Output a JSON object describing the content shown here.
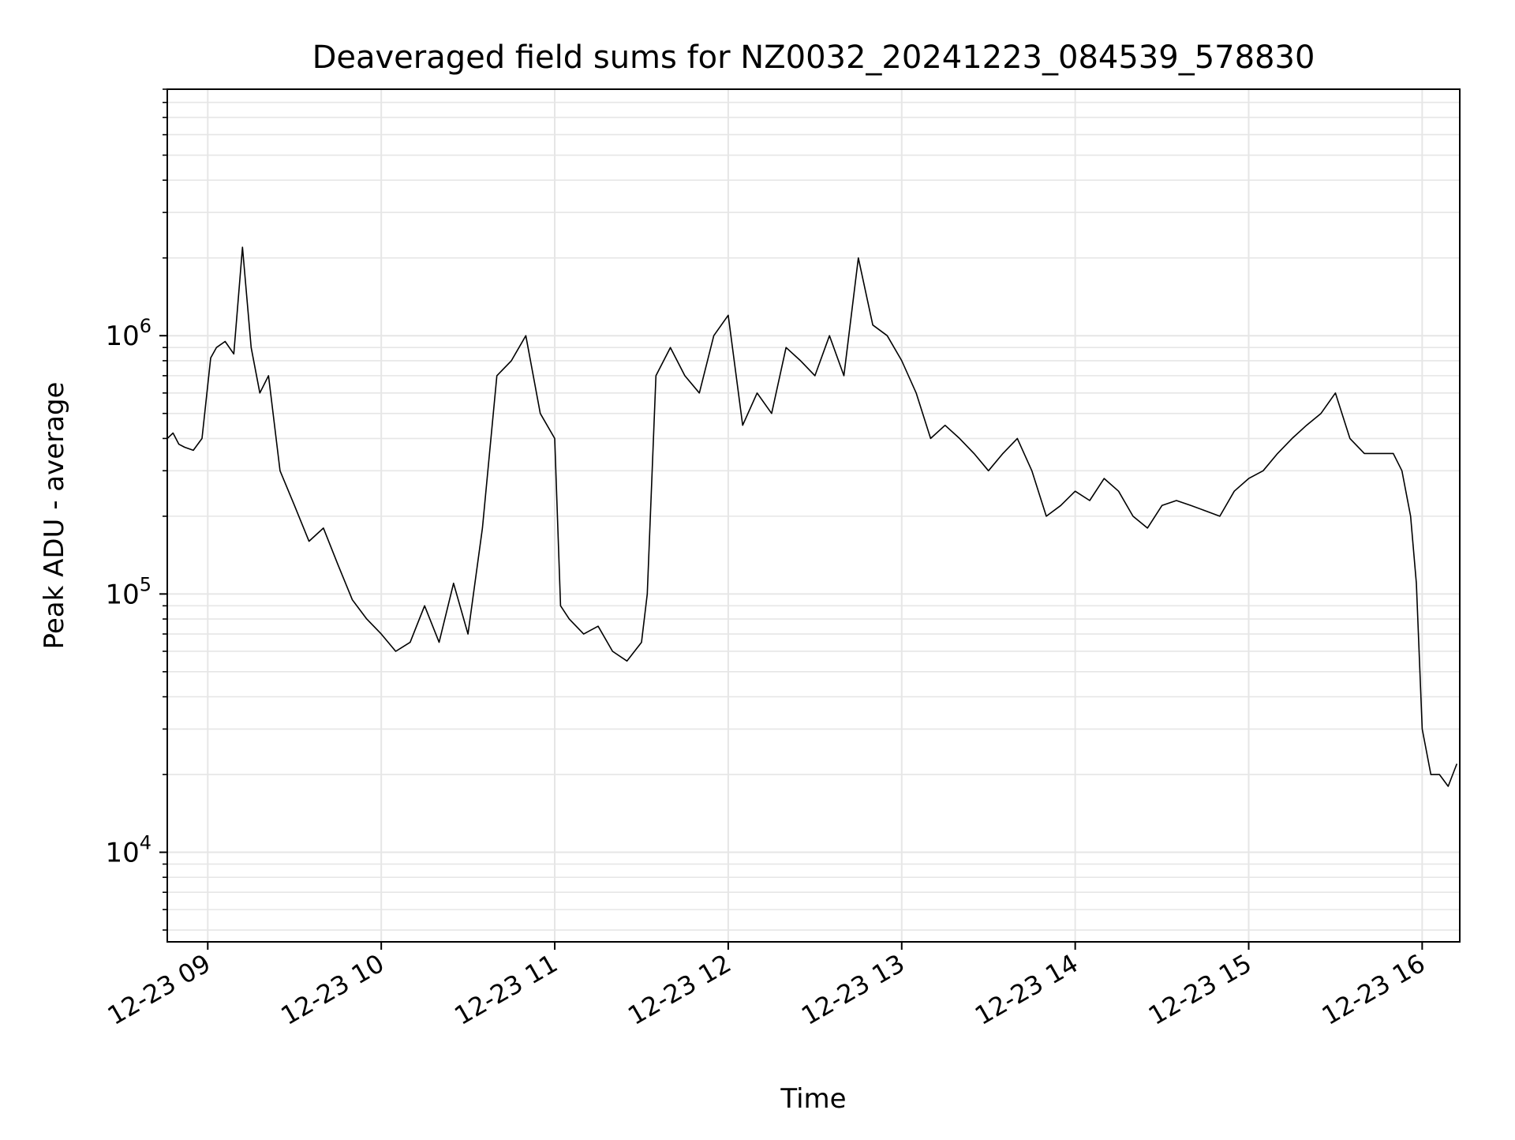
{
  "chart_data": {
    "type": "line",
    "title": "Deaveraged field sums for NZ0032_20241223_084539_578830",
    "xlabel": "Time",
    "ylabel": "Peak ADU - average",
    "y_scale": "log",
    "xlim": [
      "2024-12-23T08:46",
      "2024-12-23T16:13"
    ],
    "ylim": [
      4500,
      9000000
    ],
    "x_ticks": [
      {
        "value": "2024-12-23T09:00",
        "label": "12-23 09"
      },
      {
        "value": "2024-12-23T10:00",
        "label": "12-23 10"
      },
      {
        "value": "2024-12-23T11:00",
        "label": "12-23 11"
      },
      {
        "value": "2024-12-23T12:00",
        "label": "12-23 12"
      },
      {
        "value": "2024-12-23T13:00",
        "label": "12-23 13"
      },
      {
        "value": "2024-12-23T14:00",
        "label": "12-23 14"
      },
      {
        "value": "2024-12-23T15:00",
        "label": "12-23 15"
      },
      {
        "value": "2024-12-23T16:00",
        "label": "12-23 16"
      }
    ],
    "y_ticks": [
      {
        "value": 10000,
        "base": "10",
        "exp": "4"
      },
      {
        "value": 100000,
        "base": "10",
        "exp": "5"
      },
      {
        "value": 1000000,
        "base": "10",
        "exp": "6"
      }
    ],
    "grid": true,
    "line_color": "#000000",
    "grid_color": "#e6e6e6",
    "series": [
      {
        "x": [
          "2024-12-23T08:46",
          "2024-12-23T08:48",
          "2024-12-23T08:50",
          "2024-12-23T08:52",
          "2024-12-23T08:55",
          "2024-12-23T08:58",
          "2024-12-23T09:01",
          "2024-12-23T09:03",
          "2024-12-23T09:06",
          "2024-12-23T09:09",
          "2024-12-23T09:12",
          "2024-12-23T09:15",
          "2024-12-23T09:18",
          "2024-12-23T09:21",
          "2024-12-23T09:25",
          "2024-12-23T09:30",
          "2024-12-23T09:35",
          "2024-12-23T09:40",
          "2024-12-23T09:45",
          "2024-12-23T09:50",
          "2024-12-23T09:55",
          "2024-12-23T10:00",
          "2024-12-23T10:05",
          "2024-12-23T10:10",
          "2024-12-23T10:15",
          "2024-12-23T10:20",
          "2024-12-23T10:25",
          "2024-12-23T10:30",
          "2024-12-23T10:35",
          "2024-12-23T10:40",
          "2024-12-23T10:45",
          "2024-12-23T10:50",
          "2024-12-23T10:55",
          "2024-12-23T11:00",
          "2024-12-23T11:02",
          "2024-12-23T11:05",
          "2024-12-23T11:10",
          "2024-12-23T11:15",
          "2024-12-23T11:20",
          "2024-12-23T11:25",
          "2024-12-23T11:30",
          "2024-12-23T11:32",
          "2024-12-23T11:35",
          "2024-12-23T11:40",
          "2024-12-23T11:45",
          "2024-12-23T11:50",
          "2024-12-23T11:55",
          "2024-12-23T12:00",
          "2024-12-23T12:05",
          "2024-12-23T12:10",
          "2024-12-23T12:15",
          "2024-12-23T12:20",
          "2024-12-23T12:25",
          "2024-12-23T12:30",
          "2024-12-23T12:35",
          "2024-12-23T12:40",
          "2024-12-23T12:45",
          "2024-12-23T12:50",
          "2024-12-23T12:55",
          "2024-12-23T13:00",
          "2024-12-23T13:05",
          "2024-12-23T13:10",
          "2024-12-23T13:15",
          "2024-12-23T13:20",
          "2024-12-23T13:25",
          "2024-12-23T13:30",
          "2024-12-23T13:35",
          "2024-12-23T13:40",
          "2024-12-23T13:45",
          "2024-12-23T13:50",
          "2024-12-23T13:55",
          "2024-12-23T14:00",
          "2024-12-23T14:05",
          "2024-12-23T14:10",
          "2024-12-23T14:15",
          "2024-12-23T14:20",
          "2024-12-23T14:25",
          "2024-12-23T14:30",
          "2024-12-23T14:35",
          "2024-12-23T14:40",
          "2024-12-23T14:45",
          "2024-12-23T14:50",
          "2024-12-23T14:55",
          "2024-12-23T15:00",
          "2024-12-23T15:05",
          "2024-12-23T15:10",
          "2024-12-23T15:15",
          "2024-12-23T15:20",
          "2024-12-23T15:25",
          "2024-12-23T15:30",
          "2024-12-23T15:35",
          "2024-12-23T15:40",
          "2024-12-23T15:45",
          "2024-12-23T15:50",
          "2024-12-23T15:53",
          "2024-12-23T15:56",
          "2024-12-23T15:58",
          "2024-12-23T16:00",
          "2024-12-23T16:03",
          "2024-12-23T16:06",
          "2024-12-23T16:09",
          "2024-12-23T16:12"
        ],
        "y": [
          400000,
          420000,
          380000,
          370000,
          360000,
          400000,
          820000,
          900000,
          950000,
          850000,
          2200000,
          900000,
          600000,
          700000,
          300000,
          220000,
          160000,
          180000,
          130000,
          95000,
          80000,
          70000,
          60000,
          65000,
          90000,
          65000,
          110000,
          70000,
          180000,
          700000,
          800000,
          1000000,
          500000,
          400000,
          90000,
          80000,
          70000,
          75000,
          60000,
          55000,
          65000,
          100000,
          700000,
          900000,
          700000,
          600000,
          1000000,
          1200000,
          450000,
          600000,
          500000,
          900000,
          800000,
          700000,
          1000000,
          700000,
          2000000,
          1100000,
          1000000,
          800000,
          600000,
          400000,
          450000,
          400000,
          350000,
          300000,
          350000,
          400000,
          300000,
          200000,
          220000,
          250000,
          230000,
          280000,
          250000,
          200000,
          180000,
          220000,
          230000,
          220000,
          210000,
          200000,
          250000,
          280000,
          300000,
          350000,
          400000,
          450000,
          500000,
          600000,
          400000,
          350000,
          350000,
          350000,
          300000,
          200000,
          110000,
          30000,
          20000,
          20000,
          18000,
          22000
        ]
      }
    ]
  }
}
